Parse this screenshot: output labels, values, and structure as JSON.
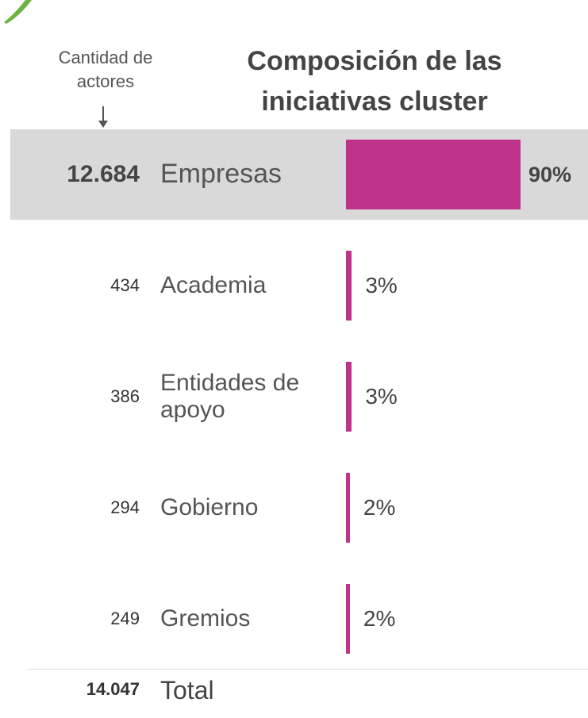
{
  "chart_data": {
    "type": "bar",
    "title": "Composición de las iniciativas cluster",
    "count_header": "Cantidad de actores",
    "categories": [
      "Empresas",
      "Academia",
      "Entidades de apoyo",
      "Gobierno",
      "Gremios"
    ],
    "counts": [
      "12.684",
      "434",
      "386",
      "294",
      "249"
    ],
    "values": [
      90,
      3,
      3,
      2,
      2
    ],
    "value_labels": [
      "90%",
      "3%",
      "3%",
      "2%",
      "2%"
    ],
    "color": "#c0338a",
    "total_label": "Total",
    "total": "14.047"
  }
}
